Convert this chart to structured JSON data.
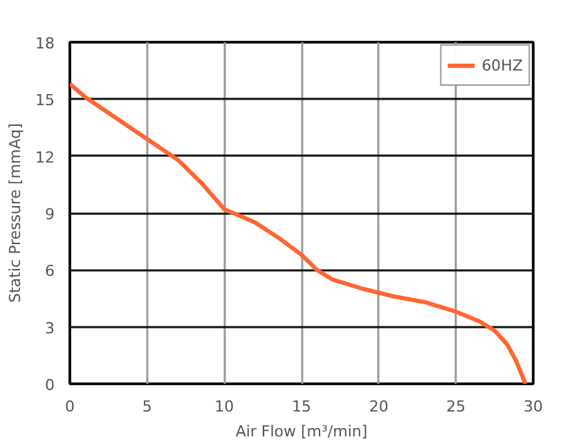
{
  "chart_data": {
    "type": "line",
    "xlabel": "Air Flow [m³/min]",
    "ylabel": "Static Pressure [mmAq]",
    "xlim": [
      0,
      30
    ],
    "ylim": [
      0,
      18
    ],
    "xticks": [
      0,
      5,
      10,
      15,
      20,
      25,
      30
    ],
    "yticks": [
      0,
      3,
      6,
      9,
      12,
      15,
      18
    ],
    "grid": true,
    "legend": "top right",
    "marker": "none",
    "line_style": "solid",
    "x": [
      0,
      1,
      3,
      5,
      7,
      8.5,
      10,
      12,
      13.5,
      15,
      16,
      17,
      19,
      21,
      23,
      25,
      26.5,
      27.5,
      28.3,
      28.9,
      29.3,
      29.5
    ],
    "series": [
      {
        "name": "60HZ",
        "color": "#ff6633",
        "values": [
          15.8,
          15.1,
          14,
          12.9,
          11.8,
          10.6,
          9.2,
          8.5,
          7.7,
          6.8,
          6,
          5.5,
          5,
          4.6,
          4.3,
          3.8,
          3.3,
          2.8,
          2.1,
          1.2,
          0.4,
          0
        ]
      }
    ]
  }
}
